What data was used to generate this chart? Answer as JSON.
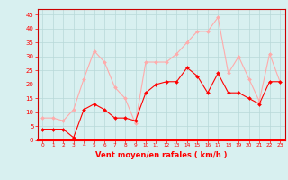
{
  "x": [
    0,
    1,
    2,
    3,
    4,
    5,
    6,
    7,
    8,
    9,
    10,
    11,
    12,
    13,
    14,
    15,
    16,
    17,
    18,
    19,
    20,
    21,
    22,
    23
  ],
  "wind_avg": [
    4,
    4,
    4,
    1,
    11,
    13,
    11,
    8,
    8,
    7,
    17,
    20,
    21,
    21,
    26,
    23,
    17,
    24,
    17,
    17,
    15,
    13,
    21,
    21
  ],
  "wind_gust": [
    8,
    8,
    7,
    11,
    22,
    32,
    28,
    19,
    15,
    6,
    28,
    28,
    28,
    31,
    35,
    39,
    39,
    44,
    24,
    30,
    22,
    14,
    31,
    21
  ],
  "avg_color": "#ff0000",
  "gust_color": "#ffaaaa",
  "bg_color": "#d8f0f0",
  "grid_color": "#b8d8d8",
  "xlabel": "Vent moyen/en rafales ( km/h )",
  "xlabel_color": "#ff0000",
  "tick_color": "#ff0000",
  "spine_color": "#cc0000",
  "ylim": [
    0,
    47
  ],
  "yticks": [
    0,
    5,
    10,
    15,
    20,
    25,
    30,
    35,
    40,
    45
  ],
  "xlim": [
    -0.5,
    23.5
  ]
}
